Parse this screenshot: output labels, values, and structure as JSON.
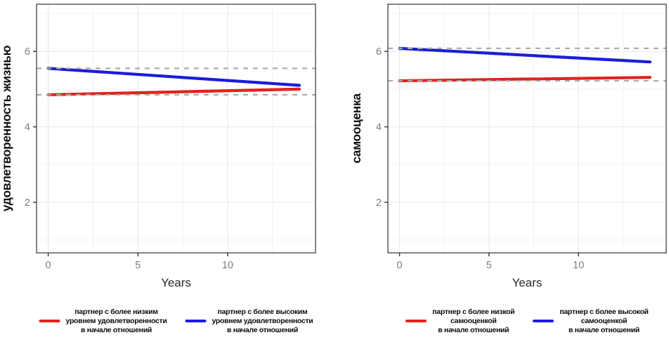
{
  "page": {
    "background": "#ffffff"
  },
  "styles": {
    "grid_major_color": "#e9e7f0",
    "grid_minor_color": "#f2f0f6",
    "panel_border_color": "#4f4f4f",
    "tick_mark_color": "#333333",
    "tick_label_color": "#7d7d7d",
    "x_title_color": "#2b2b2b",
    "y_title_color": "#0f0f0f",
    "ref_line_color": "#a9a9a9",
    "red": "#e3211c",
    "blue": "#1c1cdb"
  },
  "chart_data": [
    {
      "type": "line",
      "title": "",
      "xlabel": "Years",
      "ylabel": "удовлетворенность жизнью",
      "x_ticks": [
        0,
        5,
        10
      ],
      "y_ticks": [
        2,
        4,
        6
      ],
      "x_minor_ticks": [
        2.5,
        7.5,
        12.5
      ],
      "y_minor_ticks": [
        1,
        3,
        5,
        7
      ],
      "xlim": [
        -0.65,
        14.9
      ],
      "ylim": [
        0.66,
        7.25
      ],
      "grid": true,
      "legend_position": "bottom",
      "ref_line_style": "dashed gray horizontal line at each group's initial value",
      "series": [
        {
          "name": "partner-lower-initial-satisfaction",
          "color": "#e3211c",
          "x": [
            0,
            14
          ],
          "y": [
            4.85,
            5.0
          ],
          "ref_dashed_at": 4.85,
          "legend": "партнер с более низким\nуровнем удовлетворенности\nв начале отношений"
        },
        {
          "name": "partner-higher-initial-satisfaction",
          "color": "#1c1cdb",
          "x": [
            0,
            14
          ],
          "y": [
            5.55,
            5.1
          ],
          "ref_dashed_at": 5.55,
          "legend": "партнер с более высоким\nуровнем удовлетворенности\nв начале отношений"
        }
      ]
    },
    {
      "type": "line",
      "title": "",
      "xlabel": "Years",
      "ylabel": "самооценка",
      "x_ticks": [
        0,
        5,
        10
      ],
      "y_ticks": [
        2,
        4,
        6
      ],
      "x_minor_ticks": [
        2.5,
        7.5,
        12.5
      ],
      "y_minor_ticks": [
        1,
        3,
        5,
        7
      ],
      "xlim": [
        -0.65,
        14.9
      ],
      "ylim": [
        0.66,
        7.25
      ],
      "grid": true,
      "legend_position": "bottom",
      "ref_line_style": "dashed gray horizontal line at each group's initial value",
      "series": [
        {
          "name": "partner-lower-initial-selfesteem",
          "color": "#e3211c",
          "x": [
            0,
            14
          ],
          "y": [
            5.22,
            5.31
          ],
          "ref_dashed_at": 5.22,
          "legend": "партнер с более низкой\nсамооценкой\nв начале отношений"
        },
        {
          "name": "partner-higher-initial-selfesteem",
          "color": "#1c1cdb",
          "x": [
            0,
            14
          ],
          "y": [
            6.08,
            5.72
          ],
          "ref_dashed_at": 6.08,
          "legend": "партнер с более высокой\nсамооценкой\nв начале отношений"
        }
      ]
    }
  ]
}
